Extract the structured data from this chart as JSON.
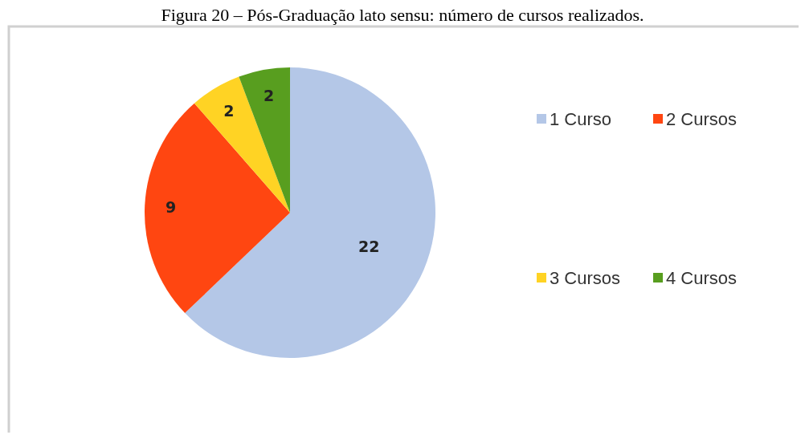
{
  "chart_data": {
    "type": "pie",
    "title": "Figura 20 – Pós-Graduação lato sensu: número de cursos realizados.",
    "categories": [
      "1 Curso",
      "2 Cursos",
      "3 Cursos",
      "4 Cursos"
    ],
    "values": [
      22,
      9,
      2,
      2
    ],
    "colors": [
      "#b4c7e7",
      "#ff4611",
      "#ffd324",
      "#589e1f"
    ],
    "data_labels": true,
    "legend": "right"
  }
}
